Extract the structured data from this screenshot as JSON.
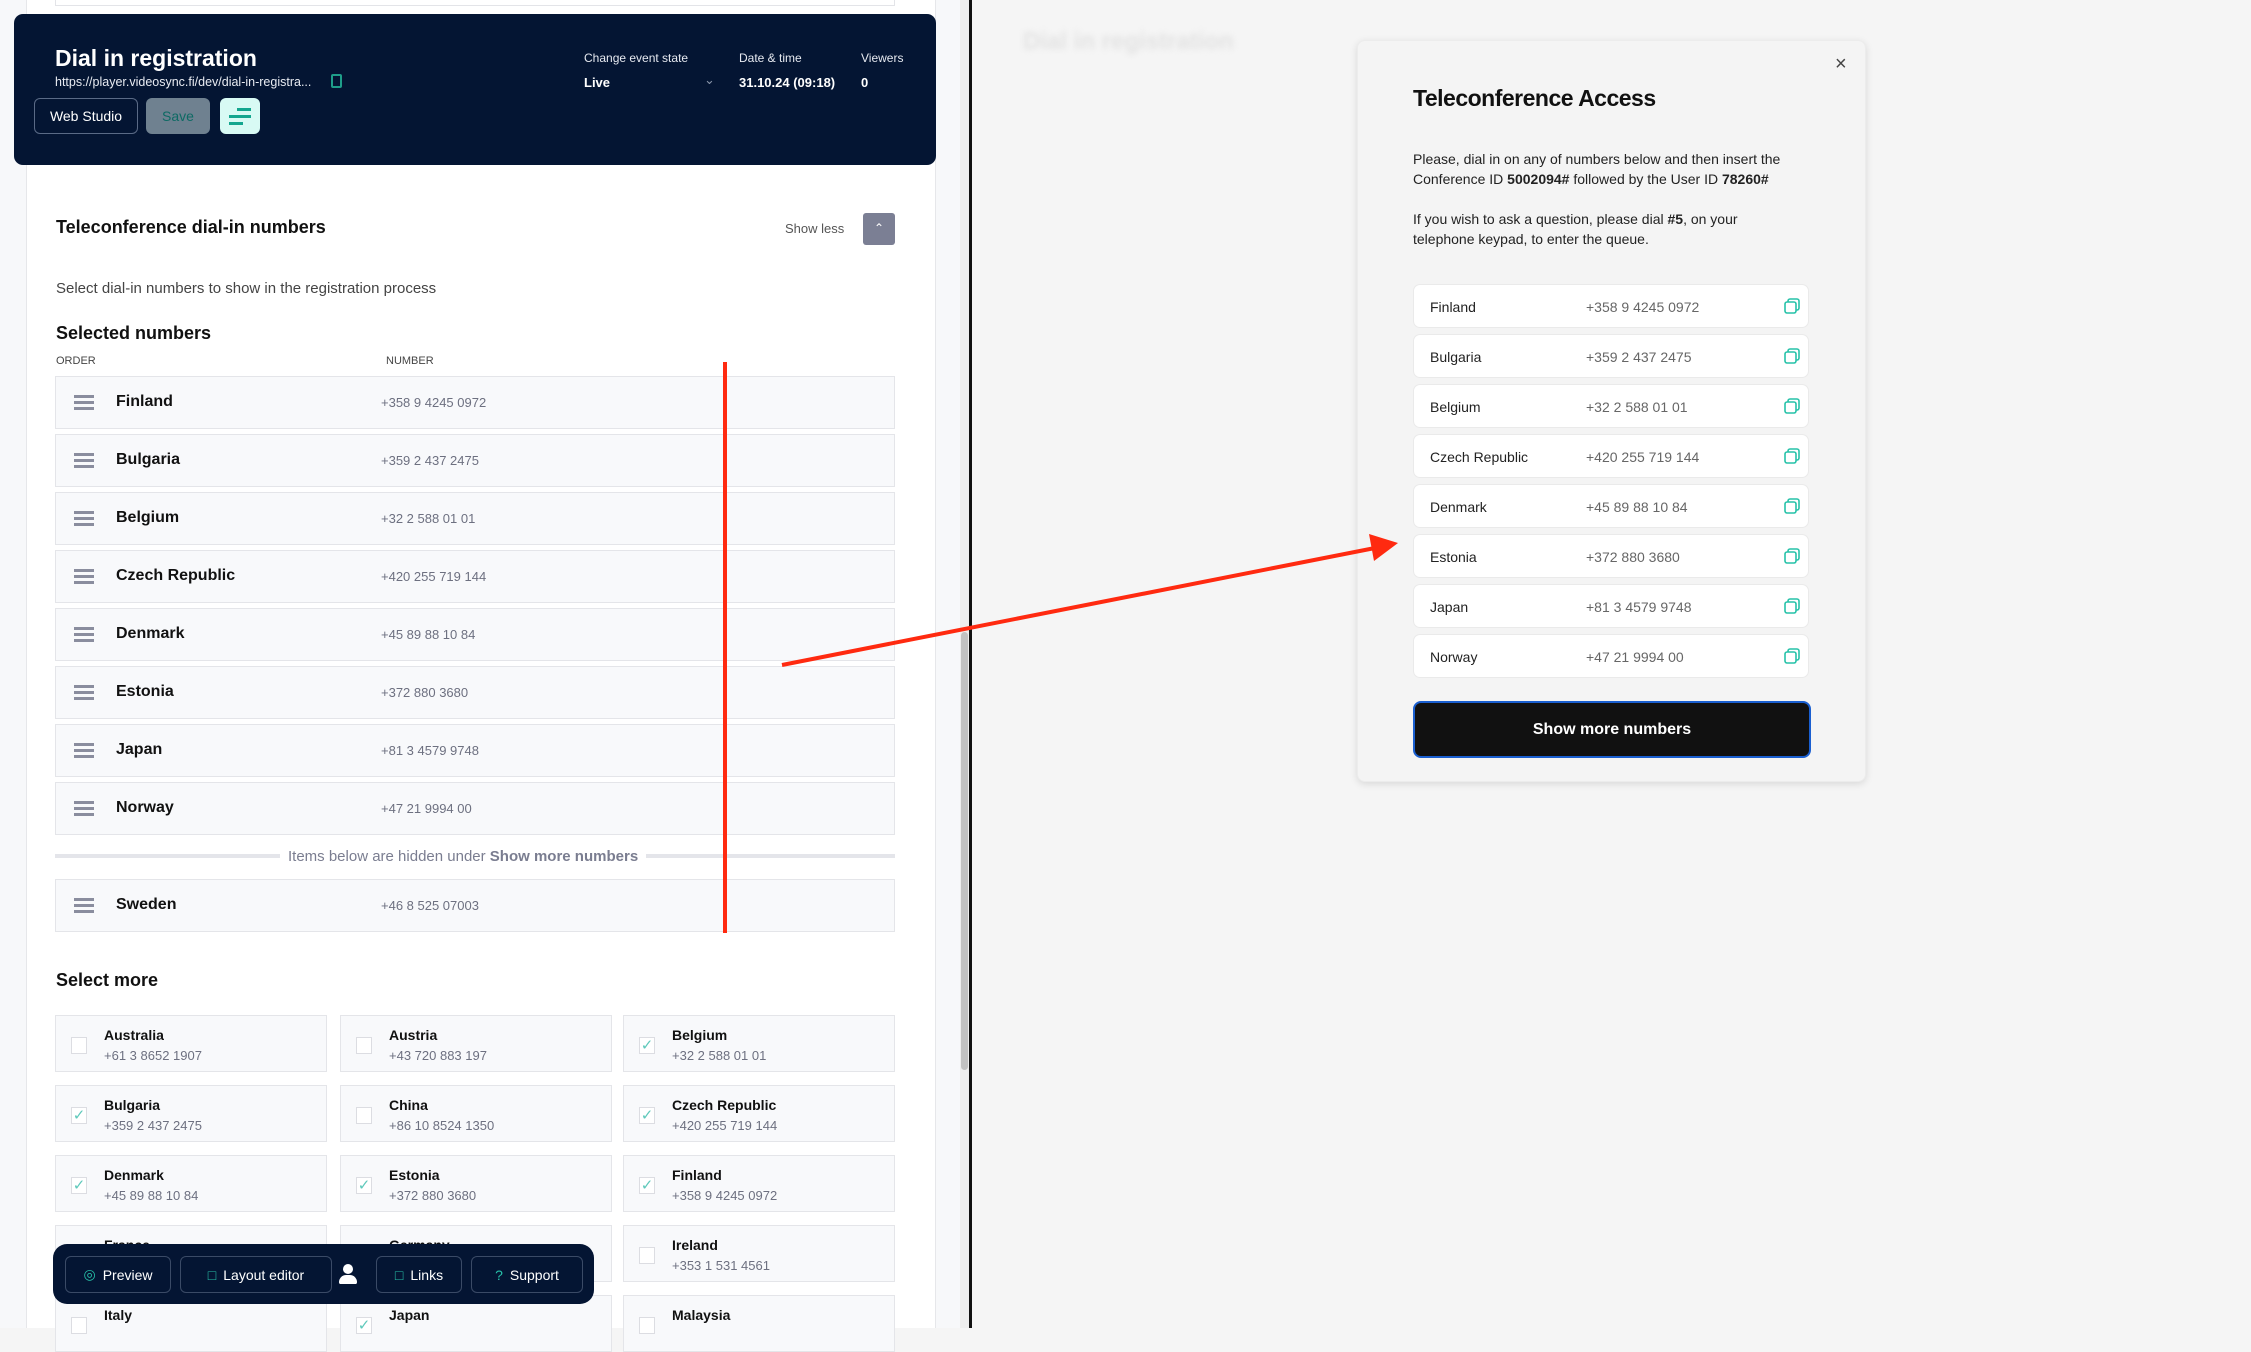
{
  "header": {
    "title": "Dial in registration",
    "url": "https://player.videosync.fi/dev/dial-in-registra...",
    "web_studio": "Web Studio",
    "save": "Save",
    "event_state_label": "Change event state",
    "event_state_value": "Live",
    "date_label": "Date & time",
    "date_value": "31.10.24 (09:18)",
    "viewers_label": "Viewers",
    "viewers_value": "0"
  },
  "section": {
    "title": "Teleconference dial-in numbers",
    "show_less": "Show less",
    "description": "Select dial-in numbers to show in the registration process",
    "selected_title": "Selected numbers",
    "col_order": "ORDER",
    "col_number": "NUMBER",
    "selected": [
      {
        "country": "Finland",
        "number": "+358 9 4245 0972"
      },
      {
        "country": "Bulgaria",
        "number": "+359 2 437 2475"
      },
      {
        "country": "Belgium",
        "number": "+32 2 588 01 01"
      },
      {
        "country": "Czech Republic",
        "number": "+420 255 719 144"
      },
      {
        "country": "Denmark",
        "number": "+45 89 88 10 84"
      },
      {
        "country": "Estonia",
        "number": "+372 880 3680"
      },
      {
        "country": "Japan",
        "number": "+81 3 4579 9748"
      },
      {
        "country": "Norway",
        "number": "+47 21 9994 00"
      }
    ],
    "hidden_divider_prefix": "Items below are hidden under ",
    "hidden_divider_bold": "Show more numbers",
    "hidden": [
      {
        "country": "Sweden",
        "number": "+46 8 525 07003"
      }
    ],
    "select_more_title": "Select more",
    "select_more": [
      {
        "country": "Australia",
        "number": "+61 3 8652 1907",
        "checked": false
      },
      {
        "country": "Austria",
        "number": "+43 720 883 197",
        "checked": false
      },
      {
        "country": "Belgium",
        "number": "+32 2 588 01 01",
        "checked": true
      },
      {
        "country": "Bulgaria",
        "number": "+359 2 437 2475",
        "checked": true
      },
      {
        "country": "China",
        "number": "+86 10 8524 1350",
        "checked": false
      },
      {
        "country": "Czech Republic",
        "number": "+420 255 719 144",
        "checked": true
      },
      {
        "country": "Denmark",
        "number": "+45 89 88 10 84",
        "checked": true
      },
      {
        "country": "Estonia",
        "number": "+372 880 3680",
        "checked": true
      },
      {
        "country": "Finland",
        "number": "+358 9 4245 0972",
        "checked": true
      },
      {
        "country": "France",
        "number": "",
        "checked": false
      },
      {
        "country": "Germany",
        "number": "",
        "checked": false
      },
      {
        "country": "Ireland",
        "number": "+353 1 531 4561",
        "checked": false
      },
      {
        "country": "Italy",
        "number": "",
        "checked": false
      },
      {
        "country": "Japan",
        "number": "",
        "checked": true
      },
      {
        "country": "Malaysia",
        "number": "",
        "checked": false
      }
    ]
  },
  "toolbar": {
    "preview": "Preview",
    "layout_editor": "Layout editor",
    "links": "Links",
    "support": "Support"
  },
  "preview_pane": {
    "blurred_title": "Dial in registration"
  },
  "modal": {
    "title": "Teleconference Access",
    "p1_a": "Please, dial in on any of numbers below and then insert the Conference ID ",
    "conference_id": "5002094#",
    "p1_b": " followed by the User ID ",
    "user_id": "78260#",
    "p2_a": "If you wish to ask a question, please dial ",
    "dial_code": "#5",
    "p2_b": ", on your telephone keypad, to enter the queue.",
    "numbers": [
      {
        "country": "Finland",
        "number": "+358 9 4245 0972"
      },
      {
        "country": "Bulgaria",
        "number": "+359 2 437 2475"
      },
      {
        "country": "Belgium",
        "number": "+32 2 588 01 01"
      },
      {
        "country": "Czech Republic",
        "number": "+420 255 719 144"
      },
      {
        "country": "Denmark",
        "number": "+45 89 88 10 84"
      },
      {
        "country": "Estonia",
        "number": "+372 880 3680"
      },
      {
        "country": "Japan",
        "number": "+81 3 4579 9748"
      },
      {
        "country": "Norway",
        "number": "+47 21 9994 00"
      }
    ],
    "show_more": "Show more numbers"
  },
  "colors": {
    "header_bg": "#041533",
    "accent": "#27c2a9",
    "annotation": "#ff2a10",
    "modal_button": "#111111",
    "focus_ring": "#1a5fd0"
  }
}
